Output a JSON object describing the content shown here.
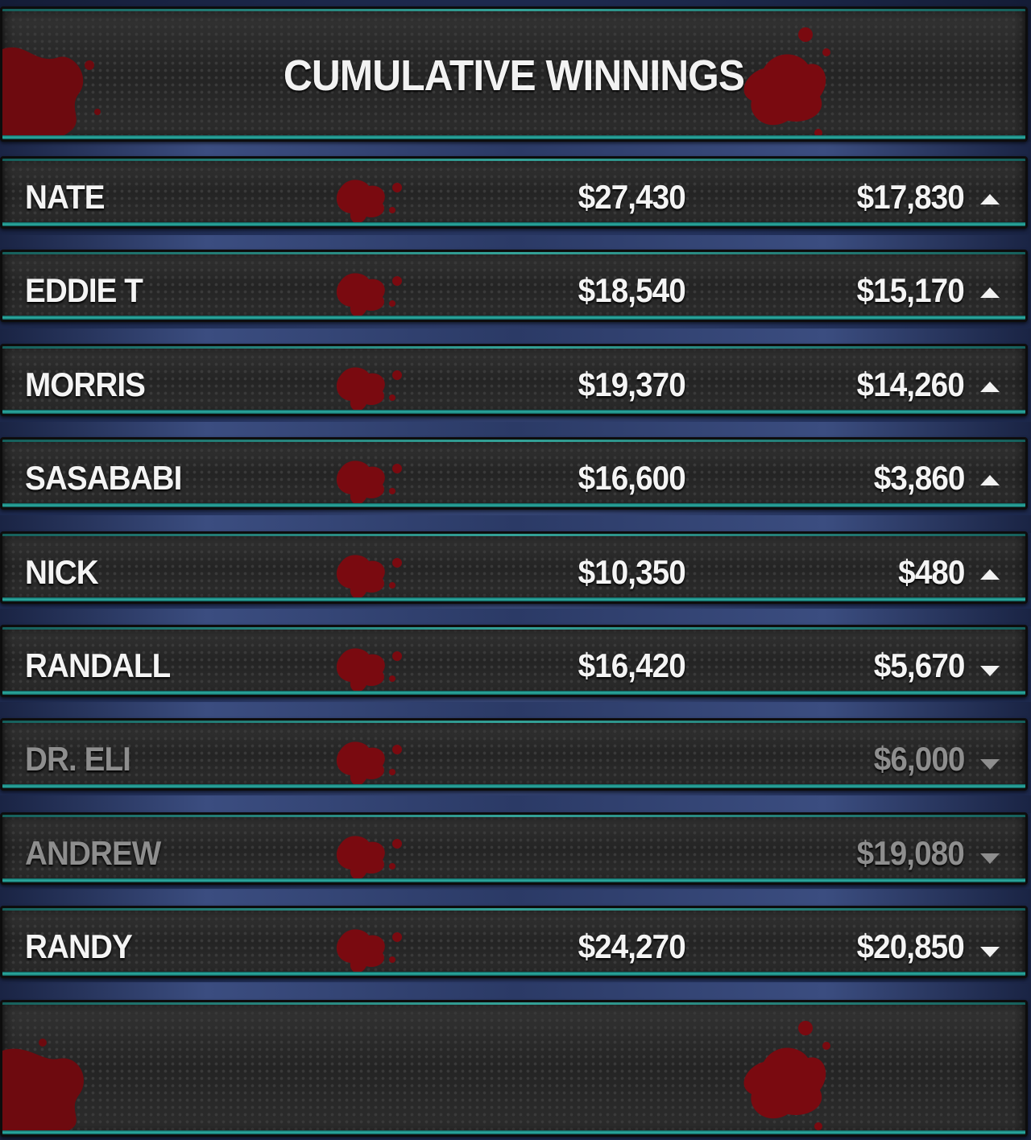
{
  "title": "CUMULATIVE WINNINGS",
  "colors": {
    "panel": "#2b2b2b",
    "teal_trim": "#2fb3a8",
    "text": "#f4f4f4",
    "dim_text": "#8e8e8e",
    "blood": "#7a0a10"
  },
  "rows": [
    {
      "name": "NATE",
      "col1": "$27,430",
      "col2": "$17,830",
      "trend": "up-arrow-icon",
      "dimmed": false
    },
    {
      "name": "EDDIE T",
      "col1": "$18,540",
      "col2": "$15,170",
      "trend": "up-arrow-icon",
      "dimmed": false
    },
    {
      "name": "MORRIS",
      "col1": "$19,370",
      "col2": "$14,260",
      "trend": "up-arrow-icon",
      "dimmed": false
    },
    {
      "name": "SASABABI",
      "col1": "$16,600",
      "col2": "$3,860",
      "trend": "up-arrow-icon",
      "dimmed": false
    },
    {
      "name": "NICK",
      "col1": "$10,350",
      "col2": "$480",
      "trend": "up-arrow-icon",
      "dimmed": false
    },
    {
      "name": "RANDALL",
      "col1": "$16,420",
      "col2": "$5,670",
      "trend": "down-arrow-icon",
      "dimmed": false
    },
    {
      "name": "DR. ELI",
      "col1": "",
      "col2": "$6,000",
      "trend": "down-arrow-icon",
      "dimmed": true
    },
    {
      "name": "ANDREW",
      "col1": "",
      "col2": "$19,080",
      "trend": "down-arrow-icon",
      "dimmed": true
    },
    {
      "name": "RANDY",
      "col1": "$24,270",
      "col2": "$20,850",
      "trend": "down-arrow-icon",
      "dimmed": false
    }
  ]
}
